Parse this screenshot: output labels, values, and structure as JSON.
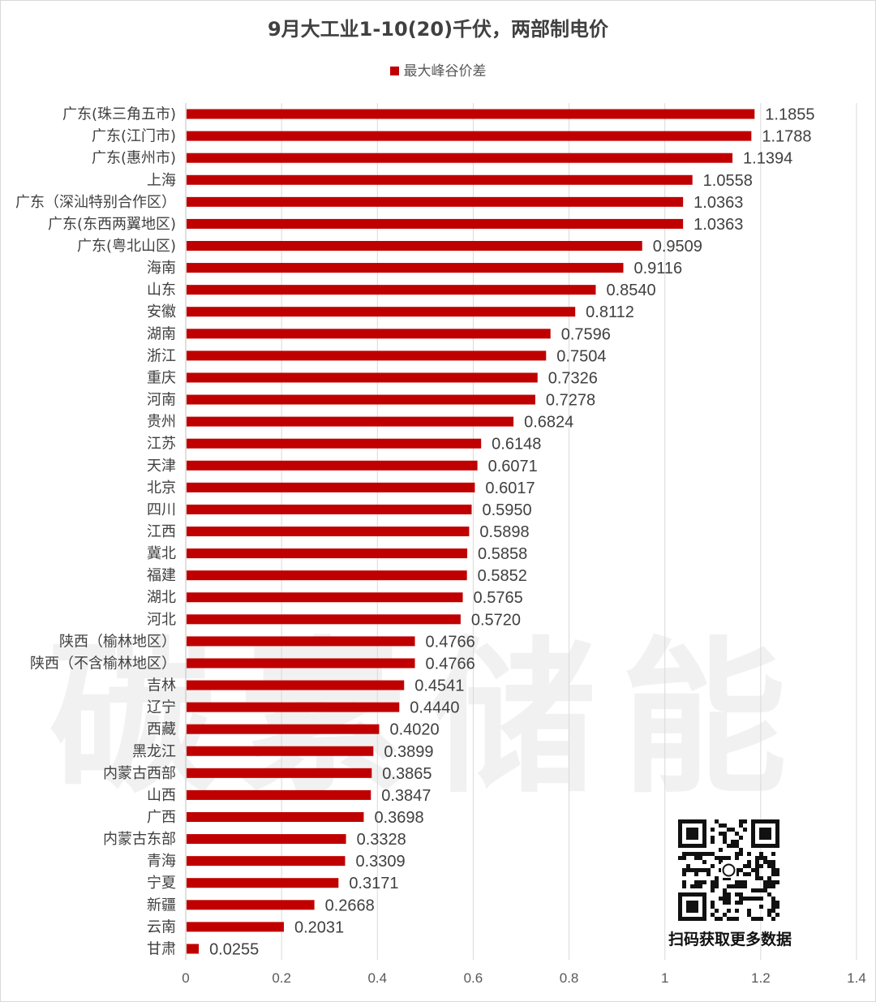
{
  "chart_data": {
    "type": "bar",
    "orientation": "horizontal",
    "title": "9月大工业1-10(20)千伏，两部制电价",
    "series": [
      {
        "name": "最大峰谷价差",
        "color": "#c00000",
        "values": [
          1.1855,
          1.1788,
          1.1394,
          1.0558,
          1.0363,
          1.0363,
          0.9509,
          0.9116,
          0.854,
          0.8112,
          0.7596,
          0.7504,
          0.7326,
          0.7278,
          0.6824,
          0.6148,
          0.6071,
          0.6017,
          0.595,
          0.5898,
          0.5858,
          0.5852,
          0.5765,
          0.572,
          0.4766,
          0.4766,
          0.4541,
          0.444,
          0.402,
          0.3899,
          0.3865,
          0.3847,
          0.3698,
          0.3328,
          0.3309,
          0.3171,
          0.2668,
          0.2031,
          0.0255
        ],
        "labels": [
          "1.1855",
          "1.1788",
          "1.1394",
          "1.0558",
          "1.0363",
          "1.0363",
          "0.9509",
          "0.9116",
          "0.8540",
          "0.8112",
          "0.7596",
          "0.7504",
          "0.7326",
          "0.7278",
          "0.6824",
          "0.6148",
          "0.6071",
          "0.6017",
          "0.5950",
          "0.5898",
          "0.5858",
          "0.5852",
          "0.5765",
          "0.5720",
          "0.4766",
          "0.4766",
          "0.4541",
          "0.4440",
          "0.4020",
          "0.3899",
          "0.3865",
          "0.3847",
          "0.3698",
          "0.3328",
          "0.3309",
          "0.3171",
          "0.2668",
          "0.2031",
          "0.0255"
        ]
      }
    ],
    "categories": [
      "广东(珠三角五市)",
      "广东(江门市)",
      "广东(惠州市)",
      "上海",
      "广东（深汕特别合作区）",
      "广东(东西两翼地区)",
      "广东(粤北山区)",
      "海南",
      "山东",
      "安徽",
      "湖南",
      "浙江",
      "重庆",
      "河南",
      "贵州",
      "江苏",
      "天津",
      "北京",
      "四川",
      "江西",
      "冀北",
      "福建",
      "湖北",
      "河北",
      "陕西（榆林地区）",
      "陕西（不含榆林地区）",
      "吉林",
      "辽宁",
      "西藏",
      "黑龙江",
      "内蒙古西部",
      "山西",
      "广西",
      "内蒙古东部",
      "青海",
      "宁夏",
      "新疆",
      "云南",
      "甘肃"
    ],
    "xlim": [
      0,
      1.4
    ],
    "xticks": [
      "0",
      "0.2",
      "0.4",
      "0.6",
      "0.8",
      "1",
      "1.2",
      "1.4"
    ],
    "grid": "vertical",
    "legend": "top-center"
  },
  "watermark": "碳素储能",
  "qr_caption": "扫码获取更多数据",
  "colors": {
    "bar": "#c00000",
    "grid": "#d9d9d9",
    "text": "#404040"
  }
}
